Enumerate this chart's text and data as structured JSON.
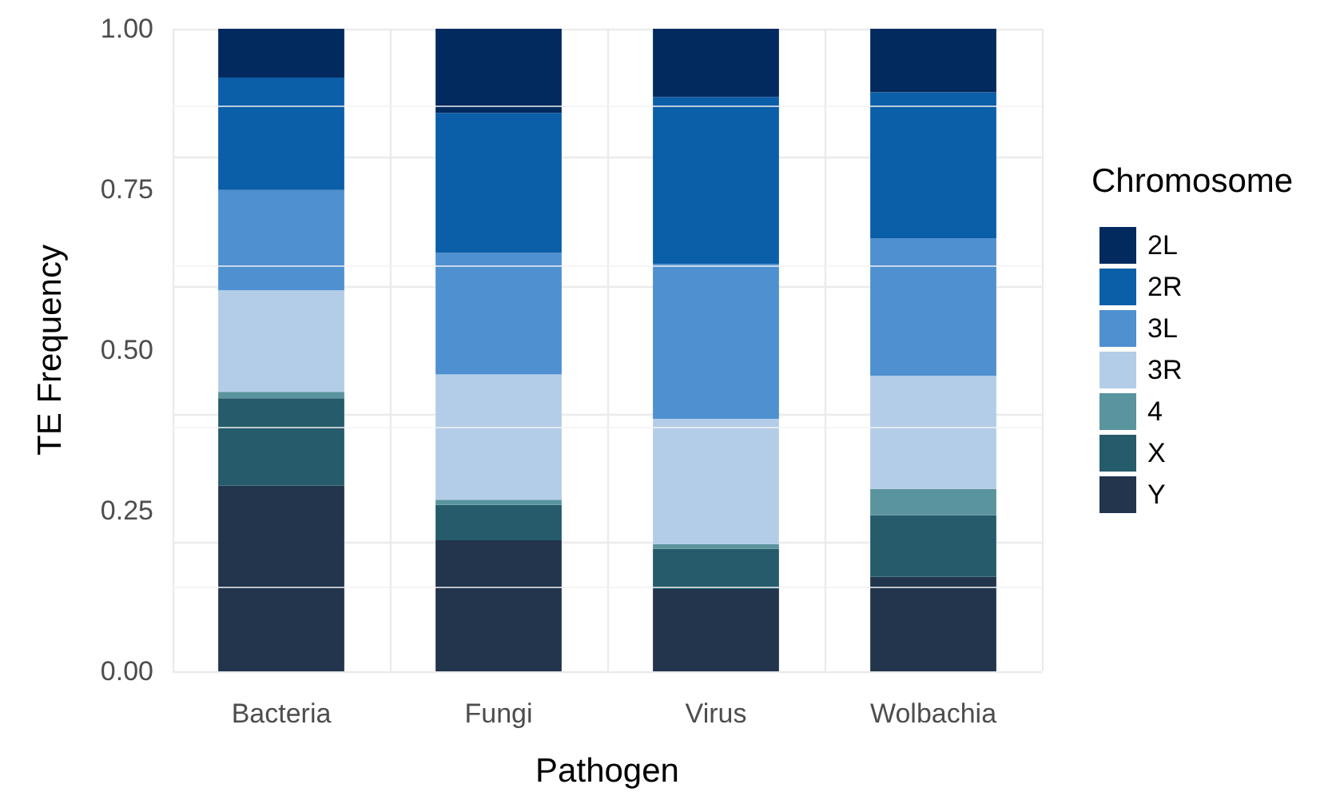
{
  "chart_data": {
    "type": "bar",
    "stacked": true,
    "xlabel": "Pathogen",
    "ylabel": "TE Frequency",
    "legend_title": "Chromosome",
    "legend": "right",
    "grid": true,
    "categories": [
      "Bacteria",
      "Fungi",
      "Virus",
      "Wolbachia"
    ],
    "ylim": [
      0,
      1
    ],
    "yticks": [
      {
        "value": 0,
        "label": "0.00"
      },
      {
        "value": 0.25,
        "label": "0.25"
      },
      {
        "value": 0.5,
        "label": "0.50"
      },
      {
        "value": 0.75,
        "label": "0.75"
      },
      {
        "value": 1,
        "label": "1.00"
      }
    ],
    "series": [
      {
        "name": "Y",
        "color": "#22354d",
        "values": [
          0.289,
          0.204,
          0.128,
          0.147
        ]
      },
      {
        "name": "X",
        "color": "#255b6b",
        "values": [
          0.136,
          0.055,
          0.063,
          0.096
        ]
      },
      {
        "name": "4",
        "color": "#5a949e",
        "values": [
          0.01,
          0.008,
          0.007,
          0.041
        ]
      },
      {
        "name": "3R",
        "color": "#b3cde8",
        "values": [
          0.158,
          0.195,
          0.195,
          0.176
        ]
      },
      {
        "name": "3L",
        "color": "#4f90d0",
        "values": [
          0.156,
          0.189,
          0.241,
          0.214
        ]
      },
      {
        "name": "2R",
        "color": "#0b5ea8",
        "values": [
          0.175,
          0.218,
          0.26,
          0.227
        ]
      },
      {
        "name": "2L",
        "color": "#032a5e",
        "values": [
          0.076,
          0.131,
          0.106,
          0.099
        ]
      }
    ]
  }
}
